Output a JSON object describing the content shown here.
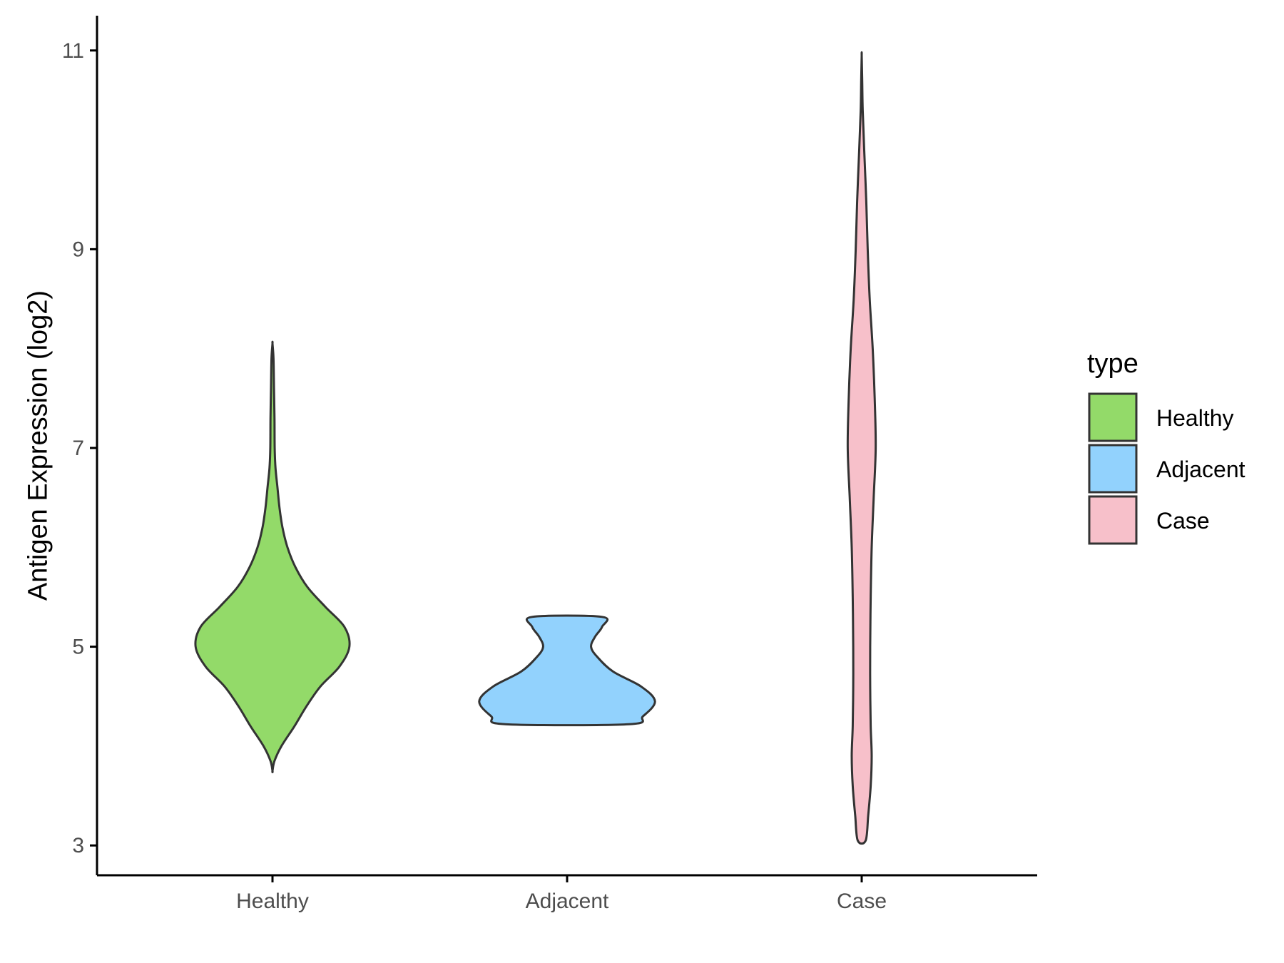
{
  "chart_data": {
    "type": "violin",
    "title": "",
    "xlabel": "",
    "ylabel": "Antigen Expression (log2)",
    "ylim": [
      2.7,
      11.35
    ],
    "yticks": [
      3,
      5,
      7,
      9,
      11
    ],
    "grid": false,
    "categories": [
      "Healthy",
      "Adjacent",
      "Case"
    ],
    "legend": {
      "title": "type",
      "placement": "right",
      "entries": [
        "Healthy",
        "Adjacent",
        "Case"
      ]
    },
    "colors": {
      "Healthy": "#93da69",
      "Adjacent": "#92d2fd",
      "Case": "#f7c0ca",
      "outline": "#333333"
    },
    "series": [
      {
        "category": "Healthy",
        "profile": [
          [
            3.75,
            0.0
          ],
          [
            3.85,
            0.02
          ],
          [
            4.0,
            0.09
          ],
          [
            4.2,
            0.22
          ],
          [
            4.4,
            0.34
          ],
          [
            4.6,
            0.48
          ],
          [
            4.8,
            0.67
          ],
          [
            5.0,
            0.77
          ],
          [
            5.2,
            0.72
          ],
          [
            5.4,
            0.53
          ],
          [
            5.6,
            0.35
          ],
          [
            5.8,
            0.23
          ],
          [
            6.0,
            0.15
          ],
          [
            6.2,
            0.1
          ],
          [
            6.4,
            0.07
          ],
          [
            6.6,
            0.05
          ],
          [
            6.8,
            0.03
          ],
          [
            7.0,
            0.022
          ],
          [
            7.3,
            0.02
          ],
          [
            7.6,
            0.015
          ],
          [
            7.9,
            0.01
          ],
          [
            8.05,
            0.0
          ]
        ]
      },
      {
        "category": "Adjacent",
        "profile": [
          [
            4.22,
            0.62
          ],
          [
            4.3,
            0.76
          ],
          [
            4.45,
            0.88
          ],
          [
            4.6,
            0.74
          ],
          [
            4.75,
            0.46
          ],
          [
            4.9,
            0.3
          ],
          [
            5.0,
            0.24
          ],
          [
            5.1,
            0.28
          ],
          [
            5.2,
            0.35
          ],
          [
            5.3,
            0.35
          ]
        ]
      },
      {
        "category": "Case",
        "profile": [
          [
            3.05,
            0.04
          ],
          [
            3.3,
            0.065
          ],
          [
            3.6,
            0.09
          ],
          [
            3.9,
            0.1
          ],
          [
            4.2,
            0.09
          ],
          [
            4.6,
            0.085
          ],
          [
            5.0,
            0.085
          ],
          [
            5.5,
            0.09
          ],
          [
            6.0,
            0.1
          ],
          [
            6.5,
            0.12
          ],
          [
            7.0,
            0.14
          ],
          [
            7.5,
            0.13
          ],
          [
            8.0,
            0.11
          ],
          [
            8.5,
            0.08
          ],
          [
            9.0,
            0.06
          ],
          [
            9.5,
            0.045
          ],
          [
            10.0,
            0.025
          ],
          [
            10.4,
            0.01
          ],
          [
            10.7,
            0.005
          ],
          [
            10.95,
            0.0
          ]
        ]
      }
    ]
  }
}
